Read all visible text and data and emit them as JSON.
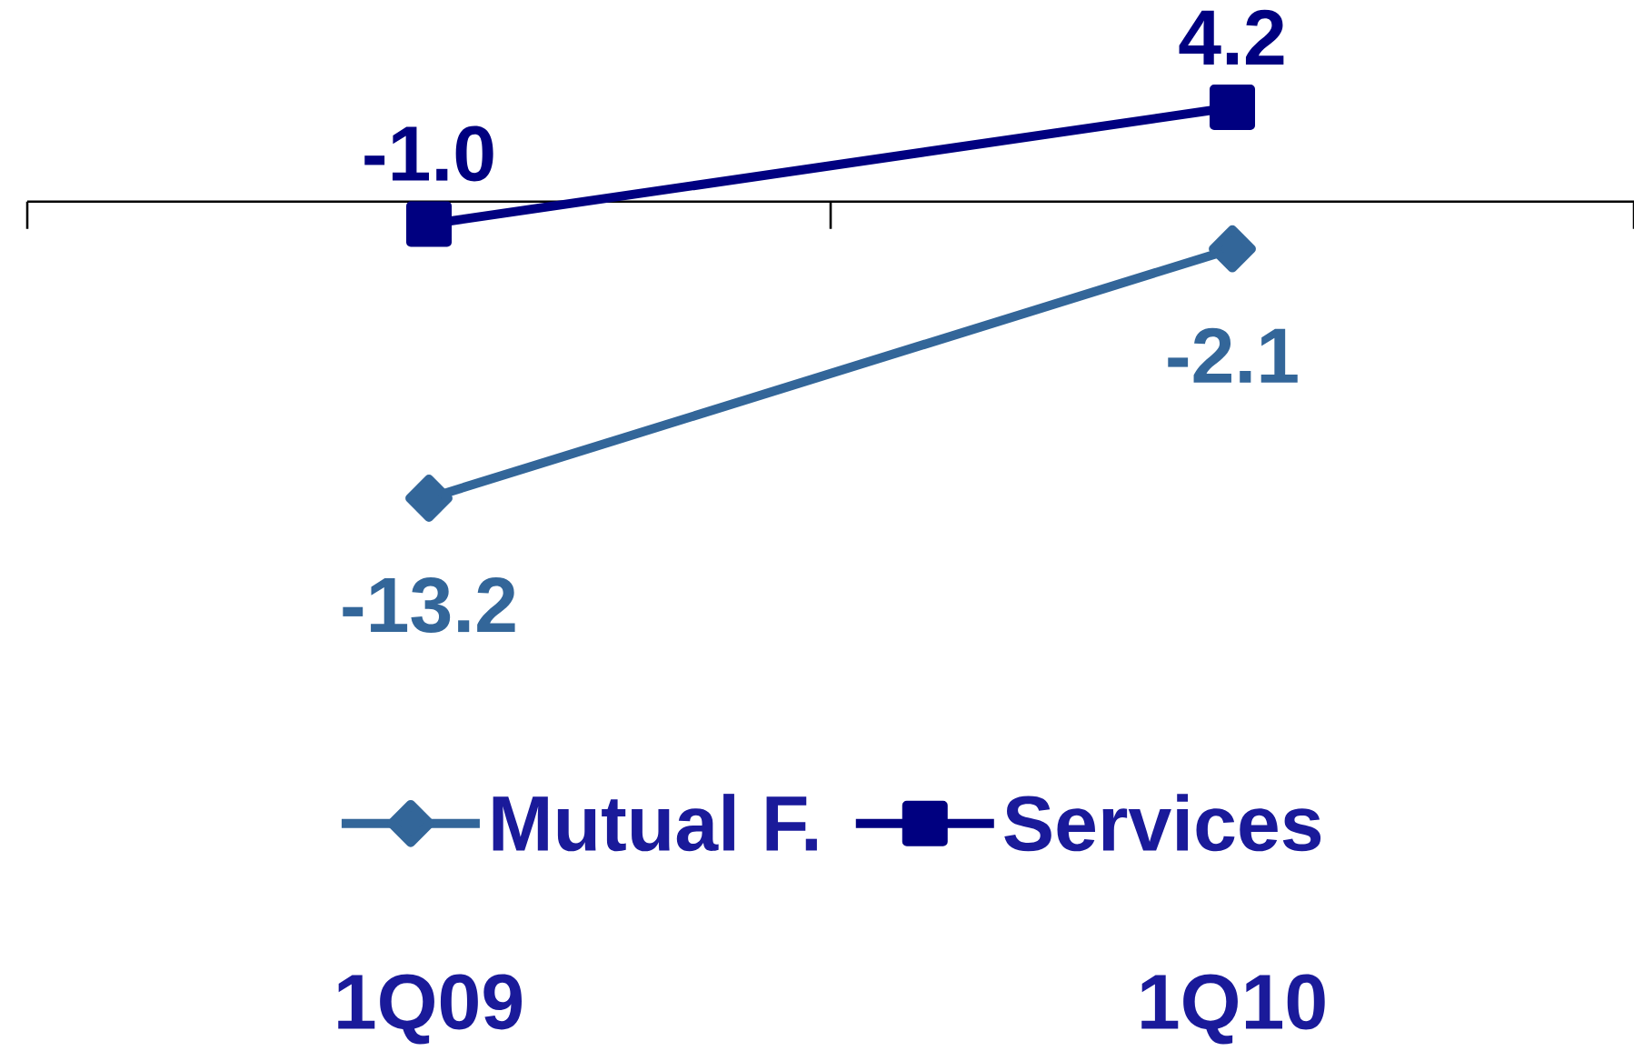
{
  "chart_data": {
    "type": "line",
    "categories": [
      "1Q09",
      "1Q10"
    ],
    "series": [
      {
        "name": "Mutual F.",
        "color": "#336699",
        "marker": "diamond",
        "values": [
          -13.2,
          -2.1
        ],
        "value_labels": [
          "-13.2",
          "-2.1"
        ]
      },
      {
        "name": "Services",
        "color": "#000080",
        "marker": "square",
        "values": [
          -1.0,
          4.2
        ],
        "value_labels": [
          "-1.0",
          "4.2"
        ]
      }
    ],
    "legend": "bottom",
    "tick_labels": "x"
  }
}
